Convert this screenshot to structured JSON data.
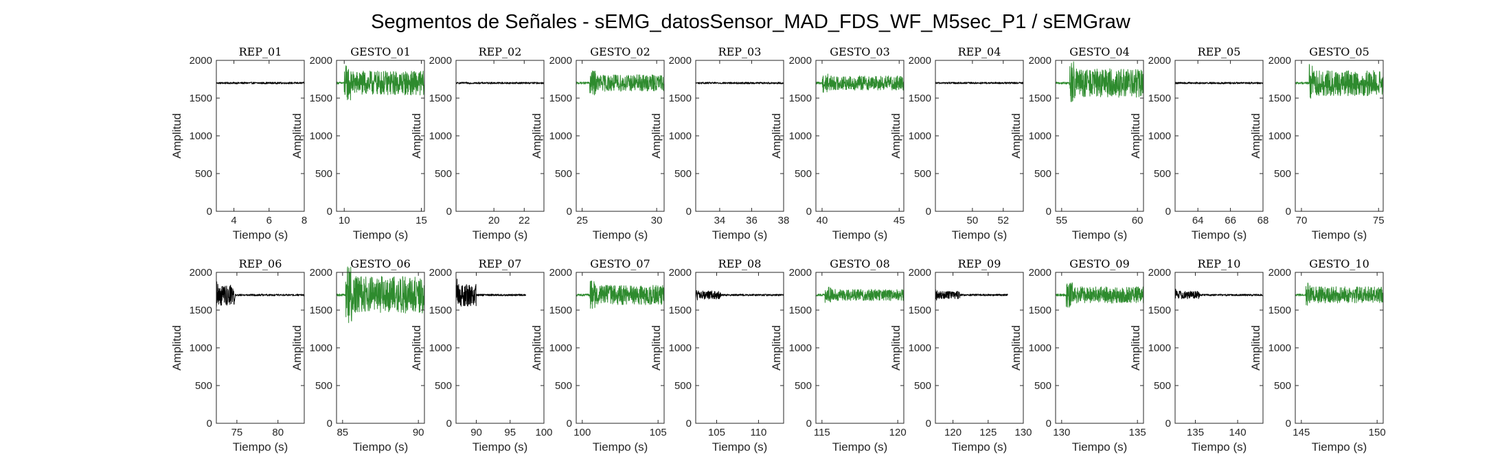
{
  "figure": {
    "title": "Segmentos de Señales - sEMG_datosSensor_MAD_FDS_WF_M5sec_P1 / sEMGraw"
  },
  "colors": {
    "rep": "#000000",
    "gesto": "#2e8b2e",
    "axis": "#262626"
  },
  "chart_data": [
    {
      "type": "line",
      "title": "REP_01",
      "kind": "rep",
      "xlabel": "Tiempo (s)",
      "ylabel": "Amplitud",
      "xlim": [
        3,
        8
      ],
      "ylim": [
        0,
        2000
      ],
      "xticks": [
        4,
        6,
        8
      ],
      "yticks": [
        0,
        500,
        1000,
        1500,
        2000
      ],
      "signal": {
        "start": 3.0,
        "end": 8.0,
        "baseline": 1700,
        "amp": 12,
        "burst_start": null,
        "burst_end": null,
        "burst_amp": 0
      }
    },
    {
      "type": "line",
      "title": "GESTO_01",
      "kind": "gesto",
      "xlabel": "Tiempo (s)",
      "ylabel": "Amplitud",
      "xlim": [
        9.5,
        15.2
      ],
      "ylim": [
        0,
        2000
      ],
      "xticks": [
        10,
        15
      ],
      "yticks": [
        0,
        500,
        1000,
        1500,
        2000
      ],
      "signal": {
        "start": 9.5,
        "end": 15.2,
        "baseline": 1700,
        "amp": 15,
        "burst_start": 10.0,
        "burst_end": 15.2,
        "burst_amp": 160
      }
    },
    {
      "type": "line",
      "title": "REP_02",
      "kind": "rep",
      "xlabel": "Tiempo (s)",
      "ylabel": "Amplitud",
      "xlim": [
        17.5,
        23.3
      ],
      "ylim": [
        0,
        2000
      ],
      "xticks": [
        20,
        22
      ],
      "yticks": [
        0,
        500,
        1000,
        1500,
        2000
      ],
      "signal": {
        "start": 17.5,
        "end": 23.3,
        "baseline": 1700,
        "amp": 12,
        "burst_start": null,
        "burst_end": null,
        "burst_amp": 0
      }
    },
    {
      "type": "line",
      "title": "GESTO_02",
      "kind": "gesto",
      "xlabel": "Tiempo (s)",
      "ylabel": "Amplitud",
      "xlim": [
        24.6,
        30.5
      ],
      "ylim": [
        0,
        2000
      ],
      "xticks": [
        25,
        30
      ],
      "yticks": [
        0,
        500,
        1000,
        1500,
        2000
      ],
      "signal": {
        "start": 24.6,
        "end": 30.5,
        "baseline": 1700,
        "amp": 15,
        "burst_start": 25.5,
        "burst_end": 30.5,
        "burst_amp": 110
      }
    },
    {
      "type": "line",
      "title": "REP_03",
      "kind": "rep",
      "xlabel": "Tiempo (s)",
      "ylabel": "Amplitud",
      "xlim": [
        32.5,
        38
      ],
      "ylim": [
        0,
        2000
      ],
      "xticks": [
        34,
        36,
        38
      ],
      "yticks": [
        0,
        500,
        1000,
        1500,
        2000
      ],
      "signal": {
        "start": 32.5,
        "end": 38.0,
        "baseline": 1700,
        "amp": 12,
        "burst_start": null,
        "burst_end": null,
        "burst_amp": 0
      }
    },
    {
      "type": "line",
      "title": "GESTO_03",
      "kind": "gesto",
      "xlabel": "Tiempo (s)",
      "ylabel": "Amplitud",
      "xlim": [
        39.6,
        45.3
      ],
      "ylim": [
        0,
        2000
      ],
      "xticks": [
        40,
        45
      ],
      "yticks": [
        0,
        500,
        1000,
        1500,
        2000
      ],
      "signal": {
        "start": 39.6,
        "end": 45.3,
        "baseline": 1700,
        "amp": 15,
        "burst_start": 40.0,
        "burst_end": 45.3,
        "burst_amp": 95
      }
    },
    {
      "type": "line",
      "title": "REP_04",
      "kind": "rep",
      "xlabel": "Tiempo (s)",
      "ylabel": "Amplitud",
      "xlim": [
        47.6,
        53.3
      ],
      "ylim": [
        0,
        2000
      ],
      "xticks": [
        50,
        52
      ],
      "yticks": [
        0,
        500,
        1000,
        1500,
        2000
      ],
      "signal": {
        "start": 47.6,
        "end": 53.3,
        "baseline": 1700,
        "amp": 12,
        "burst_start": null,
        "burst_end": null,
        "burst_amp": 0
      }
    },
    {
      "type": "line",
      "title": "GESTO_04",
      "kind": "gesto",
      "xlabel": "Tiempo (s)",
      "ylabel": "Amplitud",
      "xlim": [
        54.6,
        60.4
      ],
      "ylim": [
        0,
        2000
      ],
      "xticks": [
        55,
        60
      ],
      "yticks": [
        0,
        500,
        1000,
        1500,
        2000
      ],
      "signal": {
        "start": 54.6,
        "end": 60.4,
        "baseline": 1700,
        "amp": 15,
        "burst_start": 55.5,
        "burst_end": 60.4,
        "burst_amp": 190
      }
    },
    {
      "type": "line",
      "title": "REP_05",
      "kind": "rep",
      "xlabel": "Tiempo (s)",
      "ylabel": "Amplitud",
      "xlim": [
        62.6,
        68
      ],
      "ylim": [
        0,
        2000
      ],
      "xticks": [
        64,
        66,
        68
      ],
      "yticks": [
        0,
        500,
        1000,
        1500,
        2000
      ],
      "signal": {
        "start": 62.6,
        "end": 68.0,
        "baseline": 1700,
        "amp": 12,
        "burst_start": null,
        "burst_end": null,
        "burst_amp": 0
      }
    },
    {
      "type": "line",
      "title": "GESTO_05",
      "kind": "gesto",
      "xlabel": "Tiempo (s)",
      "ylabel": "Amplitud",
      "xlim": [
        69.6,
        75.3
      ],
      "ylim": [
        0,
        2000
      ],
      "xticks": [
        70,
        75
      ],
      "yticks": [
        0,
        500,
        1000,
        1500,
        2000
      ],
      "signal": {
        "start": 69.6,
        "end": 75.3,
        "baseline": 1700,
        "amp": 15,
        "burst_start": 70.5,
        "burst_end": 75.3,
        "burst_amp": 170
      }
    },
    {
      "type": "line",
      "title": "REP_06",
      "kind": "rep",
      "xlabel": "Tiempo (s)",
      "ylabel": "Amplitud",
      "xlim": [
        72.5,
        83.2
      ],
      "ylim": [
        0,
        2000
      ],
      "xticks": [
        75,
        80
      ],
      "yticks": [
        0,
        500,
        1000,
        1500,
        2000
      ],
      "signal": {
        "start": 72.5,
        "end": 83.2,
        "baseline": 1700,
        "amp": 12,
        "burst_start": 72.5,
        "burst_end": 74.8,
        "burst_amp": 140
      }
    },
    {
      "type": "line",
      "title": "GESTO_06",
      "kind": "gesto",
      "xlabel": "Tiempo (s)",
      "ylabel": "Amplitud",
      "xlim": [
        84.6,
        90.4
      ],
      "ylim": [
        0,
        2000
      ],
      "xticks": [
        85,
        90
      ],
      "yticks": [
        0,
        500,
        1000,
        1500,
        2000
      ],
      "signal": {
        "start": 84.6,
        "end": 90.4,
        "baseline": 1700,
        "amp": 15,
        "burst_start": 85.2,
        "burst_end": 90.4,
        "burst_amp": 250
      }
    },
    {
      "type": "line",
      "title": "REP_07",
      "kind": "rep",
      "xlabel": "Tiempo (s)",
      "ylabel": "Amplitud",
      "xlim": [
        87,
        100
      ],
      "ylim": [
        0,
        2000
      ],
      "xticks": [
        90,
        95,
        100
      ],
      "yticks": [
        0,
        500,
        1000,
        1500,
        2000
      ],
      "signal": {
        "start": 87.0,
        "end": 97.3,
        "baseline": 1700,
        "amp": 12,
        "burst_start": 87.0,
        "burst_end": 90.0,
        "burst_amp": 150
      }
    },
    {
      "type": "line",
      "title": "GESTO_07",
      "kind": "gesto",
      "xlabel": "Tiempo (s)",
      "ylabel": "Amplitud",
      "xlim": [
        99.6,
        105.4
      ],
      "ylim": [
        0,
        2000
      ],
      "xticks": [
        100,
        105
      ],
      "yticks": [
        0,
        500,
        1000,
        1500,
        2000
      ],
      "signal": {
        "start": 99.6,
        "end": 105.4,
        "baseline": 1700,
        "amp": 15,
        "burst_start": 100.5,
        "burst_end": 105.4,
        "burst_amp": 130
      }
    },
    {
      "type": "line",
      "title": "REP_08",
      "kind": "rep",
      "xlabel": "Tiempo (s)",
      "ylabel": "Amplitud",
      "xlim": [
        102.5,
        113
      ],
      "ylim": [
        0,
        2000
      ],
      "xticks": [
        105,
        110
      ],
      "yticks": [
        0,
        500,
        1000,
        1500,
        2000
      ],
      "signal": {
        "start": 102.5,
        "end": 113.0,
        "baseline": 1700,
        "amp": 12,
        "burst_start": 102.5,
        "burst_end": 105.5,
        "burst_amp": 55
      }
    },
    {
      "type": "line",
      "title": "GESTO_08",
      "kind": "gesto",
      "xlabel": "Tiempo (s)",
      "ylabel": "Amplitud",
      "xlim": [
        114.6,
        120.4
      ],
      "ylim": [
        0,
        2000
      ],
      "xticks": [
        115,
        120
      ],
      "yticks": [
        0,
        500,
        1000,
        1500,
        2000
      ],
      "signal": {
        "start": 114.6,
        "end": 120.4,
        "baseline": 1700,
        "amp": 15,
        "burst_start": 115.2,
        "burst_end": 120.4,
        "burst_amp": 75
      }
    },
    {
      "type": "line",
      "title": "REP_09",
      "kind": "rep",
      "xlabel": "Tiempo (s)",
      "ylabel": "Amplitud",
      "xlim": [
        117.5,
        130
      ],
      "ylim": [
        0,
        2000
      ],
      "xticks": [
        120,
        125,
        130
      ],
      "yticks": [
        0,
        500,
        1000,
        1500,
        2000
      ],
      "signal": {
        "start": 117.5,
        "end": 127.8,
        "baseline": 1700,
        "amp": 12,
        "burst_start": 117.5,
        "burst_end": 121.0,
        "burst_amp": 50
      }
    },
    {
      "type": "line",
      "title": "GESTO_09",
      "kind": "gesto",
      "xlabel": "Tiempo (s)",
      "ylabel": "Amplitud",
      "xlim": [
        129.6,
        135.4
      ],
      "ylim": [
        0,
        2000
      ],
      "xticks": [
        130,
        135
      ],
      "yticks": [
        0,
        500,
        1000,
        1500,
        2000
      ],
      "signal": {
        "start": 129.6,
        "end": 135.4,
        "baseline": 1700,
        "amp": 15,
        "burst_start": 130.3,
        "burst_end": 135.4,
        "burst_amp": 110
      }
    },
    {
      "type": "line",
      "title": "REP_10",
      "kind": "rep",
      "xlabel": "Tiempo (s)",
      "ylabel": "Amplitud",
      "xlim": [
        132.6,
        143
      ],
      "ylim": [
        0,
        2000
      ],
      "xticks": [
        135,
        140
      ],
      "yticks": [
        0,
        500,
        1000,
        1500,
        2000
      ],
      "signal": {
        "start": 132.6,
        "end": 143.0,
        "baseline": 1700,
        "amp": 12,
        "burst_start": 132.6,
        "burst_end": 135.5,
        "burst_amp": 55
      }
    },
    {
      "type": "line",
      "title": "GESTO_10",
      "kind": "gesto",
      "xlabel": "Tiempo (s)",
      "ylabel": "Amplitud",
      "xlim": [
        144.6,
        150.4
      ],
      "ylim": [
        0,
        2000
      ],
      "xticks": [
        145,
        150
      ],
      "yticks": [
        0,
        500,
        1000,
        1500,
        2000
      ],
      "signal": {
        "start": 144.6,
        "end": 150.4,
        "baseline": 1700,
        "amp": 15,
        "burst_start": 145.3,
        "burst_end": 150.4,
        "burst_amp": 110
      }
    }
  ]
}
